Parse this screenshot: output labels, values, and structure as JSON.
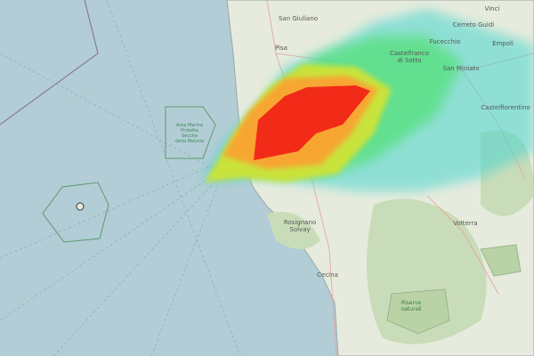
{
  "map": {
    "labels": {
      "san_giuliano": "San Giuliano",
      "pisa": "Pisa",
      "vinci": "Vinci",
      "cerreto_guidi": "Cerreto Guidi",
      "empoli": "Empoli",
      "fucecchio": "Fucecchio",
      "castelfranco": [
        "Castelfranco",
        "di Sotto"
      ],
      "san_miniato": "San Miniato",
      "castelfiorentino": "Castelfiorentino",
      "meloria": [
        "Area Marina",
        "Protetta",
        "Secche",
        "della Meloria"
      ],
      "rosignano": [
        "Rosignano",
        "Solvay"
      ],
      "volterra": "Volterra",
      "cecina": "Cecina",
      "riserve": [
        "Riserve",
        "naturali"
      ]
    }
  }
}
